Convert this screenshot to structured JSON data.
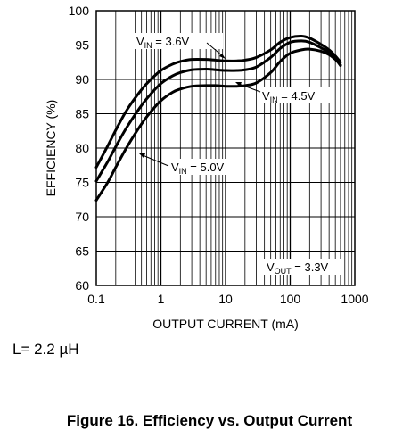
{
  "chart_data": {
    "type": "line",
    "xscale": "log",
    "xlabel": "OUTPUT CURRENT (mA)",
    "ylabel": "EFFICIENCY (%)",
    "xlim": [
      0.1,
      1000
    ],
    "ylim": [
      60,
      100
    ],
    "xticks": [
      "0.1",
      "1",
      "10",
      "100",
      "1000"
    ],
    "yticks": [
      "60",
      "65",
      "70",
      "75",
      "80",
      "85",
      "90",
      "95",
      "100"
    ],
    "grid": true,
    "series": [
      {
        "name_main": "V",
        "name_sub": "IN",
        "name_value": " = 3.6V",
        "x": [
          0.1,
          0.15,
          0.2,
          0.3,
          0.5,
          0.7,
          1,
          1.5,
          2,
          3,
          5,
          7,
          10,
          15,
          20,
          30,
          50,
          70,
          100,
          150,
          200,
          300,
          400,
          500,
          600
        ],
        "y": [
          77.2,
          80.3,
          82.6,
          85.6,
          88.5,
          90.0,
          91.3,
          92.2,
          92.6,
          92.9,
          92.9,
          92.8,
          92.7,
          92.7,
          92.8,
          93.2,
          94.3,
          95.4,
          96.1,
          96.3,
          96.0,
          95.1,
          94.3,
          93.4,
          92.5
        ]
      },
      {
        "name_main": "V",
        "name_sub": "IN",
        "name_value": " = 4.5V",
        "x": [
          0.1,
          0.15,
          0.2,
          0.3,
          0.5,
          0.7,
          1,
          1.5,
          2,
          3,
          5,
          7,
          10,
          15,
          20,
          30,
          50,
          70,
          100,
          150,
          200,
          300,
          400,
          500,
          600
        ],
        "y": [
          75.2,
          78.0,
          80.2,
          83.1,
          86.2,
          87.9,
          89.4,
          90.5,
          91.0,
          91.4,
          91.5,
          91.4,
          91.3,
          91.3,
          91.4,
          91.8,
          93.2,
          94.5,
          95.4,
          95.6,
          95.4,
          94.6,
          93.9,
          93.0,
          92.0
        ]
      },
      {
        "name_main": "V",
        "name_sub": "IN",
        "name_value": " = 5.0V",
        "x": [
          0.1,
          0.15,
          0.2,
          0.3,
          0.5,
          0.7,
          1,
          1.5,
          2,
          3,
          5,
          7,
          10,
          15,
          20,
          30,
          50,
          70,
          100,
          150,
          200,
          300,
          400,
          500,
          600
        ],
        "y": [
          72.4,
          75.0,
          77.2,
          80.2,
          83.5,
          85.3,
          86.9,
          88.1,
          88.6,
          89.0,
          89.1,
          89.1,
          89.0,
          89.0,
          89.1,
          89.5,
          91.0,
          92.6,
          93.8,
          94.3,
          94.4,
          94.1,
          93.6,
          92.9,
          92.1
        ]
      }
    ],
    "annotation": {
      "main": "V",
      "sub": "OUT",
      "value": " = 3.3V"
    }
  },
  "note": "L= 2.2 µH",
  "caption": "Figure 16. Efficiency vs. Output Current"
}
